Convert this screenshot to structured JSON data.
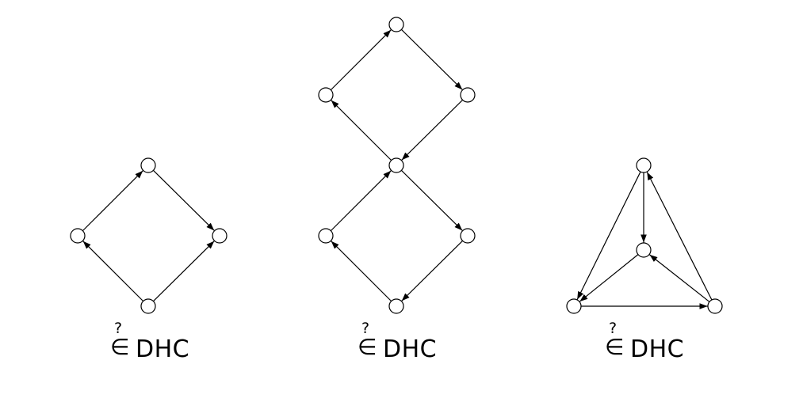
{
  "graphs": [
    {
      "id": "diamond",
      "nodes": [
        "a",
        "b",
        "c",
        "d"
      ],
      "edges": [
        [
          "a",
          "b"
        ],
        [
          "b",
          "c"
        ],
        [
          "d",
          "c"
        ],
        [
          "d",
          "a"
        ]
      ],
      "caption": {
        "query_symbol": "?",
        "relation_symbol": "∈",
        "class_name": "DHC"
      }
    },
    {
      "id": "double-diamond",
      "nodes": [
        "top",
        "upper-left",
        "upper-right",
        "middle",
        "lower-left",
        "lower-right",
        "bottom"
      ],
      "edges": [
        [
          "upper-left",
          "top"
        ],
        [
          "top",
          "upper-right"
        ],
        [
          "upper-right",
          "middle"
        ],
        [
          "middle",
          "upper-left"
        ],
        [
          "lower-left",
          "middle"
        ],
        [
          "middle",
          "lower-right"
        ],
        [
          "lower-right",
          "bottom"
        ],
        [
          "bottom",
          "lower-left"
        ]
      ],
      "caption": {
        "query_symbol": "?",
        "relation_symbol": "∈",
        "class_name": "DHC"
      }
    },
    {
      "id": "tetrahedron",
      "nodes": [
        "apex",
        "center",
        "bottom-left",
        "bottom-right"
      ],
      "edges": [
        [
          "apex",
          "center"
        ],
        [
          "apex",
          "bottom-left"
        ],
        [
          "center",
          "bottom-left"
        ],
        [
          "bottom-left",
          "bottom-right"
        ],
        [
          "bottom-right",
          "center"
        ],
        [
          "bottom-right",
          "apex"
        ]
      ],
      "caption": {
        "query_symbol": "?",
        "relation_symbol": "∈",
        "class_name": "DHC"
      }
    }
  ]
}
